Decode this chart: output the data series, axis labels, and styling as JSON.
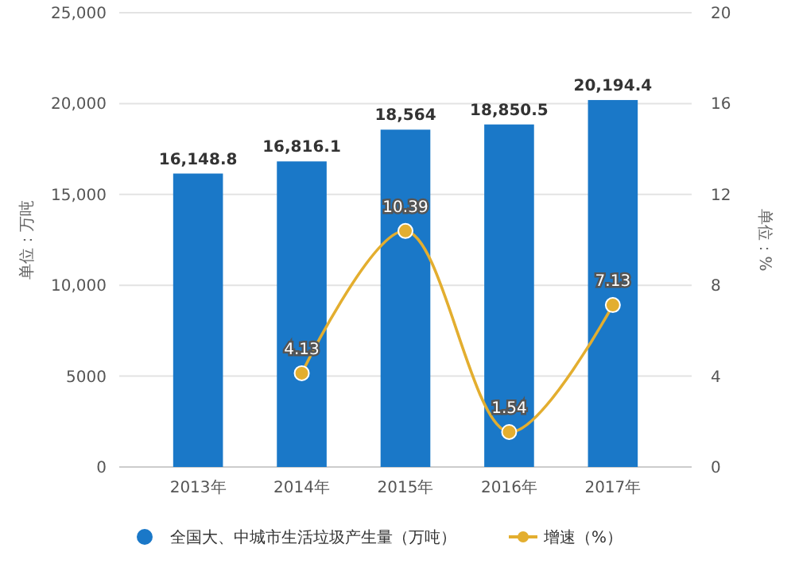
{
  "chart_data": {
    "type": "bar",
    "categories": [
      "2013年",
      "2014年",
      "2015年",
      "2016年",
      "2017年"
    ],
    "series": [
      {
        "name": "全国大、中城市生活垃圾产生量（万吨）",
        "color": "#1a78c8",
        "values": [
          16148.8,
          16816.1,
          18564,
          18850.5,
          20194.4
        ],
        "value_labels": [
          "16,148.8",
          "16,816.1",
          "18,564",
          "18,850.5",
          "20,194.4"
        ]
      },
      {
        "name": "增速（%）",
        "type": "line",
        "axis": "y2",
        "color": "#e3ae2f",
        "values": [
          null,
          4.13,
          10.39,
          1.54,
          7.13
        ],
        "value_labels": [
          null,
          "4.13",
          "10.39",
          "1.54",
          "7.13"
        ]
      }
    ],
    "ylabel": "单位：万吨",
    "y2label": "单位：%",
    "ylim": [
      0,
      25000
    ],
    "yticks": [
      0,
      {
        "value": 5000,
        "label": "5000"
      },
      {
        "value": 10000,
        "label": "10,000"
      },
      {
        "value": 15000,
        "label": "15,000"
      },
      {
        "value": 20000,
        "label": "20,000"
      },
      {
        "value": 25000,
        "label": "25,000"
      }
    ],
    "y2lim": [
      0,
      20
    ],
    "y2ticks": [
      0,
      4,
      8,
      12,
      16,
      20
    ],
    "grid": "y",
    "legend": "bottom",
    "marker": "circle"
  }
}
